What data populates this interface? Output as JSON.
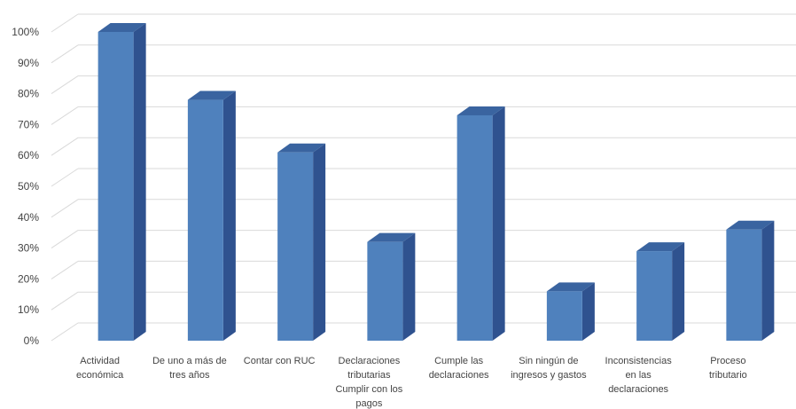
{
  "chart_data": {
    "type": "bar",
    "style": "3d-column",
    "categories": [
      [
        "Actividad",
        "económica"
      ],
      [
        "De uno a más de",
        "tres años"
      ],
      [
        "Contar con RUC"
      ],
      [
        "Declaraciones",
        "tributarias",
        "Cumplir con los",
        "pagos"
      ],
      [
        "Cumple las",
        "declaraciones"
      ],
      [
        "Sin ningún de",
        "ingresos y gastos"
      ],
      [
        "Inconsistencias",
        "en las",
        "declaraciones"
      ],
      [
        "Proceso",
        "tributario"
      ]
    ],
    "values": [
      100,
      78,
      61,
      32,
      73,
      16,
      29,
      36
    ],
    "yticks": [
      "0%",
      "10%",
      "20%",
      "30%",
      "40%",
      "50%",
      "60%",
      "70%",
      "80%",
      "90%",
      "100%"
    ],
    "ylim": [
      0,
      100
    ],
    "grid": true,
    "colors": {
      "front": "#4F81BD",
      "side": "#2F528F",
      "top": "#3A64A0",
      "grid": "#D9D9D9"
    }
  }
}
